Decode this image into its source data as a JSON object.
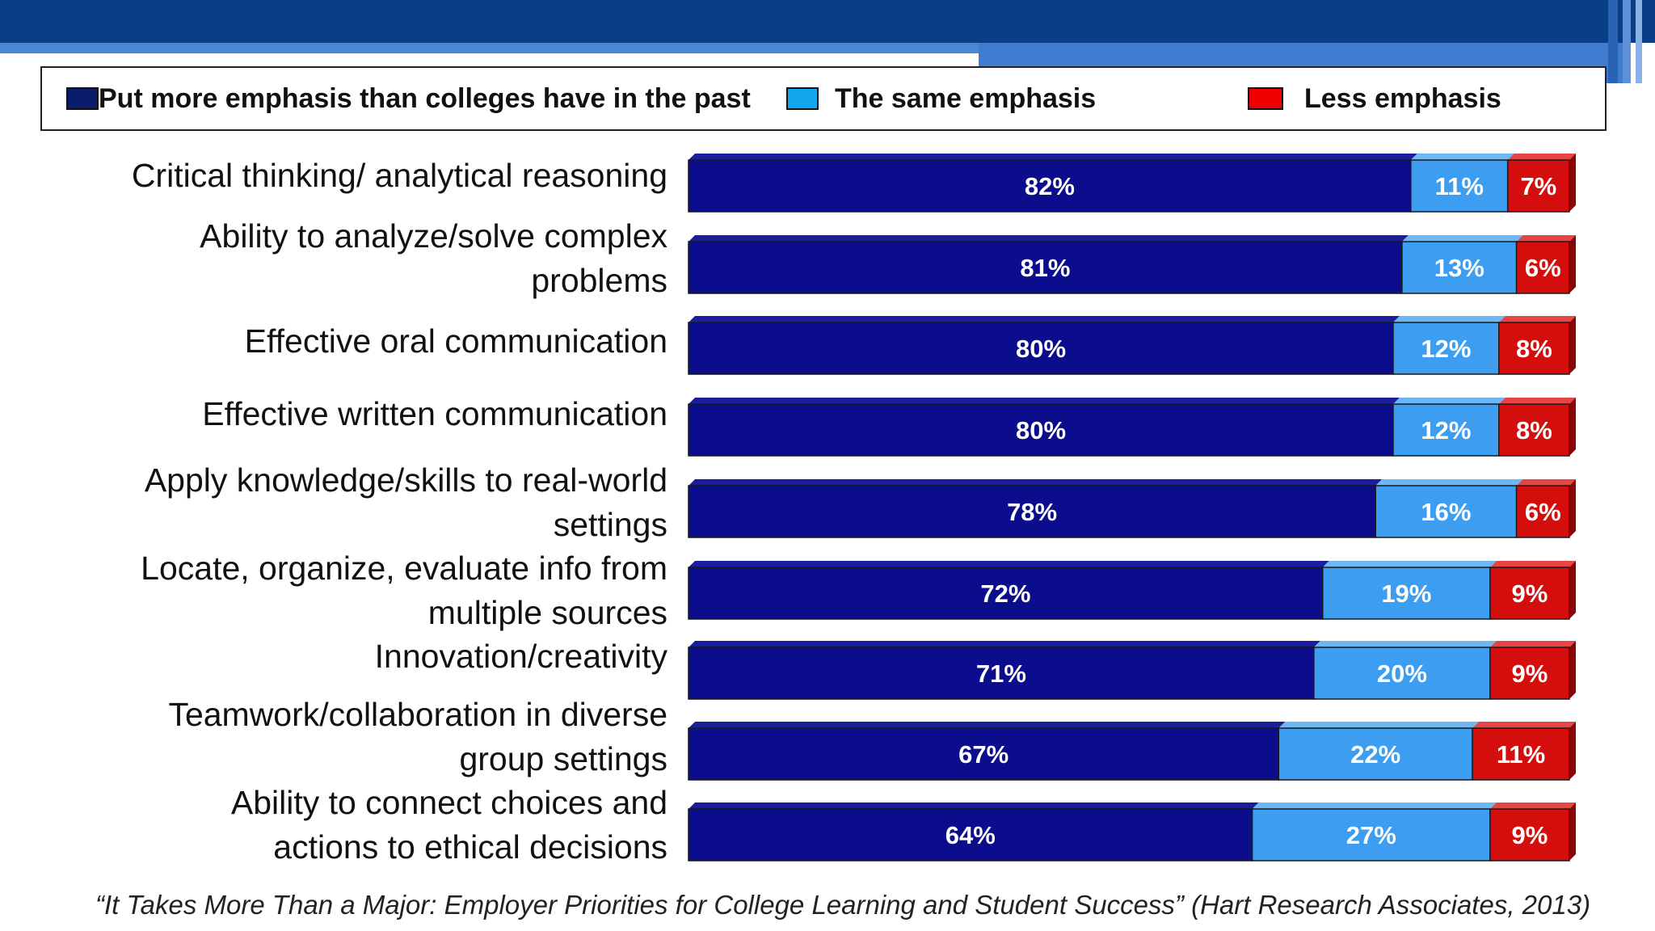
{
  "chart_data": {
    "type": "bar",
    "orientation": "horizontal",
    "stacked": true,
    "categories": [
      "Critical thinking/ analytical reasoning",
      "Ability to analyze/solve complex\nproblems",
      "Effective oral communication",
      "Effective written communication",
      "Apply knowledge/skills  to real-world\nsettings",
      "Locate, organize, evaluate info from\nmultiple sources",
      "Innovation/creativity",
      "Teamwork/collaboration in diverse\ngroup settings",
      "Ability to connect  choices and\nactions  to ethical decisions"
    ],
    "series": [
      {
        "name": "Put more emphasis than colleges have in the past",
        "color": "#0b0d8c",
        "values": [
          82,
          81,
          80,
          80,
          78,
          72,
          71,
          67,
          64
        ]
      },
      {
        "name": "The same emphasis",
        "color": "#3d9df0",
        "values": [
          11,
          13,
          12,
          12,
          16,
          19,
          20,
          22,
          27
        ]
      },
      {
        "name": "Less emphasis",
        "color": "#d40d0d",
        "values": [
          7,
          6,
          8,
          8,
          6,
          9,
          9,
          11,
          9
        ]
      }
    ],
    "value_suffix": "%",
    "xlim": [
      0,
      100
    ],
    "legend_position": "top",
    "grid": false
  },
  "legend": {
    "items": [
      {
        "label": "Put more emphasis than colleges have in the past",
        "color": "#0b1c6b"
      },
      {
        "label": "The same emphasis",
        "color": "#12a7ec"
      },
      {
        "label": "Less emphasis",
        "color": "#f00000"
      }
    ]
  },
  "source": "“It Takes More Than a Major: Employer Priorities for College Learning and Student Success” (Hart Research Associates, 2013)"
}
